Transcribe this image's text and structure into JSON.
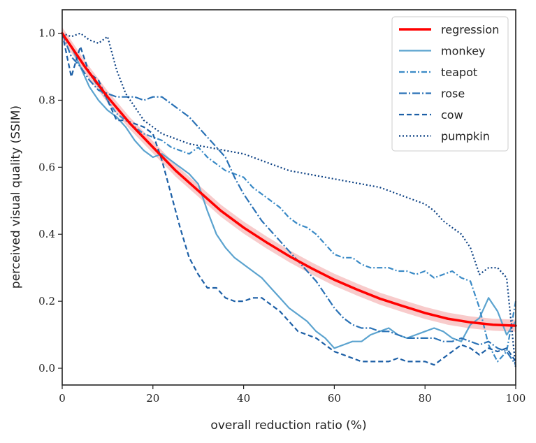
{
  "chart_data": {
    "type": "line",
    "title": "",
    "xlabel": "overall reduction ratio (%)",
    "ylabel": "perceived visual quality (SSIM)",
    "xlim": [
      0,
      100
    ],
    "ylim": [
      -0.05,
      1.07
    ],
    "xticks": [
      0,
      20,
      40,
      60,
      80,
      100
    ],
    "yticks": [
      0.0,
      0.2,
      0.4,
      0.6,
      0.8,
      1.0
    ],
    "xtick_labels": [
      "0",
      "20",
      "40",
      "60",
      "80",
      "100"
    ],
    "ytick_labels": [
      "0.0",
      "0.2",
      "0.4",
      "0.6",
      "0.8",
      "1.0"
    ],
    "grid": false,
    "legend_position": "top-right",
    "regression": {
      "name": "regression",
      "color": "#ff0000",
      "band_color": "#f4a8a8",
      "x": [
        0,
        5,
        10,
        15,
        20,
        25,
        30,
        35,
        40,
        45,
        50,
        55,
        60,
        65,
        70,
        75,
        80,
        85,
        90,
        95,
        100
      ],
      "y": [
        1.0,
        0.9,
        0.81,
        0.73,
        0.66,
        0.59,
        0.53,
        0.47,
        0.42,
        0.376,
        0.335,
        0.298,
        0.264,
        0.235,
        0.208,
        0.186,
        0.165,
        0.148,
        0.137,
        0.13,
        0.127
      ],
      "band": 0.018
    },
    "series": [
      {
        "name": "monkey",
        "color": "#5ba3cf",
        "dash": "solid",
        "x": [
          0,
          2,
          4,
          6,
          8,
          10,
          12,
          14,
          16,
          18,
          20,
          22,
          24,
          26,
          28,
          30,
          32,
          34,
          36,
          38,
          40,
          42,
          44,
          46,
          48,
          50,
          52,
          54,
          56,
          58,
          60,
          62,
          64,
          66,
          68,
          70,
          72,
          74,
          76,
          78,
          80,
          82,
          84,
          86,
          88,
          90,
          92,
          94,
          96,
          98,
          100
        ],
        "y": [
          1.0,
          0.96,
          0.9,
          0.84,
          0.8,
          0.77,
          0.75,
          0.72,
          0.68,
          0.65,
          0.63,
          0.64,
          0.62,
          0.6,
          0.58,
          0.55,
          0.47,
          0.4,
          0.36,
          0.33,
          0.31,
          0.29,
          0.27,
          0.24,
          0.21,
          0.18,
          0.16,
          0.14,
          0.11,
          0.09,
          0.06,
          0.07,
          0.08,
          0.08,
          0.1,
          0.11,
          0.12,
          0.1,
          0.09,
          0.1,
          0.11,
          0.12,
          0.11,
          0.09,
          0.08,
          0.13,
          0.15,
          0.21,
          0.17,
          0.1,
          0.14
        ]
      },
      {
        "name": "teapot",
        "color": "#3a8ac6",
        "dash": "8 3 2 3",
        "x": [
          0,
          2,
          4,
          6,
          8,
          10,
          12,
          14,
          16,
          18,
          20,
          22,
          24,
          26,
          28,
          30,
          32,
          34,
          36,
          38,
          40,
          42,
          44,
          46,
          48,
          50,
          52,
          54,
          56,
          58,
          60,
          62,
          64,
          66,
          68,
          70,
          72,
          74,
          76,
          78,
          80,
          82,
          84,
          86,
          88,
          90,
          92,
          94,
          96,
          98,
          100
        ],
        "y": [
          1.0,
          0.96,
          0.92,
          0.88,
          0.84,
          0.8,
          0.76,
          0.74,
          0.72,
          0.7,
          0.69,
          0.68,
          0.66,
          0.65,
          0.64,
          0.66,
          0.63,
          0.61,
          0.59,
          0.58,
          0.57,
          0.54,
          0.52,
          0.5,
          0.48,
          0.45,
          0.43,
          0.42,
          0.4,
          0.37,
          0.34,
          0.33,
          0.33,
          0.31,
          0.3,
          0.3,
          0.3,
          0.29,
          0.29,
          0.28,
          0.29,
          0.27,
          0.28,
          0.29,
          0.27,
          0.26,
          0.18,
          0.07,
          0.02,
          0.05,
          0.2
        ]
      },
      {
        "name": "rose",
        "color": "#2a72b6",
        "dash": "11 3 2 3",
        "x": [
          0,
          2,
          4,
          6,
          8,
          10,
          12,
          14,
          16,
          18,
          20,
          22,
          24,
          26,
          28,
          30,
          32,
          34,
          36,
          38,
          40,
          42,
          44,
          46,
          48,
          50,
          52,
          54,
          56,
          58,
          60,
          62,
          64,
          66,
          68,
          70,
          72,
          74,
          76,
          78,
          80,
          82,
          84,
          86,
          88,
          90,
          92,
          94,
          96,
          98,
          100
        ],
        "y": [
          1.0,
          0.93,
          0.9,
          0.86,
          0.83,
          0.82,
          0.81,
          0.81,
          0.81,
          0.8,
          0.81,
          0.81,
          0.79,
          0.77,
          0.75,
          0.72,
          0.69,
          0.66,
          0.63,
          0.57,
          0.52,
          0.48,
          0.44,
          0.41,
          0.38,
          0.35,
          0.32,
          0.29,
          0.26,
          0.22,
          0.18,
          0.15,
          0.13,
          0.12,
          0.12,
          0.11,
          0.11,
          0.1,
          0.09,
          0.09,
          0.09,
          0.09,
          0.08,
          0.08,
          0.09,
          0.08,
          0.07,
          0.08,
          0.06,
          0.05,
          0.01
        ]
      },
      {
        "name": "cow",
        "color": "#1c5fa6",
        "dash": "7 4",
        "x": [
          0,
          2,
          4,
          6,
          8,
          10,
          12,
          14,
          16,
          18,
          20,
          22,
          24,
          26,
          28,
          30,
          32,
          34,
          36,
          38,
          40,
          42,
          44,
          46,
          48,
          50,
          52,
          54,
          56,
          58,
          60,
          62,
          64,
          66,
          68,
          70,
          72,
          74,
          76,
          78,
          80,
          82,
          84,
          86,
          88,
          90,
          92,
          94,
          96,
          98,
          100
        ],
        "y": [
          1.0,
          0.87,
          0.96,
          0.88,
          0.86,
          0.8,
          0.74,
          0.74,
          0.73,
          0.72,
          0.7,
          0.62,
          0.52,
          0.42,
          0.33,
          0.28,
          0.24,
          0.24,
          0.21,
          0.2,
          0.2,
          0.21,
          0.21,
          0.19,
          0.17,
          0.14,
          0.11,
          0.1,
          0.09,
          0.07,
          0.05,
          0.04,
          0.03,
          0.02,
          0.02,
          0.02,
          0.02,
          0.03,
          0.02,
          0.02,
          0.02,
          0.01,
          0.03,
          0.05,
          0.07,
          0.06,
          0.04,
          0.06,
          0.05,
          0.06,
          0.02
        ]
      },
      {
        "name": "pumpkin",
        "color": "#0b4083",
        "dash": "2 3",
        "x": [
          0,
          2,
          4,
          6,
          8,
          10,
          12,
          14,
          16,
          18,
          20,
          22,
          24,
          26,
          28,
          30,
          32,
          34,
          36,
          38,
          40,
          42,
          44,
          46,
          48,
          50,
          52,
          54,
          56,
          58,
          60,
          62,
          64,
          66,
          68,
          70,
          72,
          74,
          76,
          78,
          80,
          82,
          84,
          86,
          88,
          90,
          92,
          94,
          96,
          98,
          100
        ],
        "y": [
          1.0,
          0.99,
          1.0,
          0.98,
          0.97,
          0.99,
          0.89,
          0.82,
          0.78,
          0.74,
          0.72,
          0.7,
          0.69,
          0.68,
          0.67,
          0.665,
          0.66,
          0.655,
          0.65,
          0.645,
          0.64,
          0.63,
          0.62,
          0.61,
          0.6,
          0.59,
          0.585,
          0.58,
          0.575,
          0.57,
          0.565,
          0.56,
          0.555,
          0.55,
          0.545,
          0.54,
          0.53,
          0.52,
          0.51,
          0.5,
          0.49,
          0.47,
          0.44,
          0.42,
          0.4,
          0.36,
          0.28,
          0.3,
          0.3,
          0.27,
          0.0
        ]
      }
    ],
    "legend": [
      "regression",
      "monkey",
      "teapot",
      "rose",
      "cow",
      "pumpkin"
    ]
  }
}
